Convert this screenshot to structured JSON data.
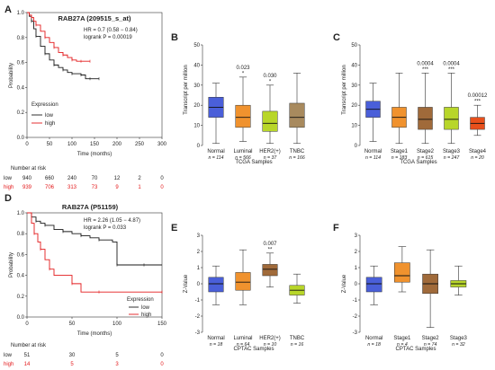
{
  "chart_data": [
    {
      "label": "A",
      "type": "line",
      "title": "RAB27A (209515_s_at)",
      "xlabel": "Time (months)",
      "ylabel": "Probability",
      "xticks": [
        0,
        50,
        100,
        150,
        200,
        250,
        300
      ],
      "yticks": [
        0.0,
        0.2,
        0.4,
        0.6,
        0.8,
        1.0
      ],
      "xlim": [
        0,
        300
      ],
      "ylim": [
        0,
        1
      ],
      "stats": [
        "HR = 0.7 (0.58 − 0.84)",
        "logrank P = 0.00019"
      ],
      "legend_title": "Expression",
      "legend_position": "bottom-left",
      "series": [
        {
          "name": "low",
          "color": "#1a1a1a",
          "x": [
            0,
            5,
            10,
            15,
            20,
            30,
            40,
            50,
            60,
            70,
            80,
            90,
            100,
            110,
            120,
            130,
            140,
            150,
            160
          ],
          "y": [
            1,
            0.97,
            0.93,
            0.87,
            0.81,
            0.73,
            0.67,
            0.62,
            0.58,
            0.56,
            0.54,
            0.52,
            0.51,
            0.51,
            0.5,
            0.47,
            0.47,
            0.47,
            0.47
          ]
        },
        {
          "name": "high",
          "color": "#e31a1c",
          "x": [
            0,
            5,
            10,
            15,
            20,
            30,
            40,
            50,
            60,
            70,
            80,
            90,
            100,
            110,
            120,
            130,
            140
          ],
          "y": [
            1,
            0.98,
            0.96,
            0.93,
            0.9,
            0.85,
            0.8,
            0.76,
            0.72,
            0.68,
            0.66,
            0.64,
            0.62,
            0.61,
            0.61,
            0.61,
            0.61
          ]
        }
      ],
      "risk_table": {
        "title": "Number at risk",
        "times": [
          0,
          50,
          100,
          150,
          200,
          250,
          300
        ],
        "rows": [
          {
            "name": "low",
            "values": [
              "940",
              "660",
              "240",
              "70",
              "12",
              "2",
              "0"
            ]
          },
          {
            "name": "high",
            "values": [
              "939",
              "706",
              "313",
              "73",
              "9",
              "1",
              "0"
            ]
          }
        ]
      }
    },
    {
      "label": "B",
      "type": "box",
      "xlabel": "TCGA Samples",
      "ylabel": "Transcript per million",
      "ylim": [
        0,
        50
      ],
      "yticks": [
        0,
        10,
        20,
        30,
        40,
        50
      ],
      "categories": [
        "Normal",
        "Luminal",
        "HER2(+)",
        "TNBC"
      ],
      "n": [
        "n = 114",
        "n = 566",
        "n = 37",
        "n = 166"
      ],
      "colors": [
        "#4a5fd9",
        "#f0922e",
        "#b8d62a",
        "#a88a5e"
      ],
      "boxes": [
        [
          1,
          14,
          19,
          24,
          31
        ],
        [
          2,
          9,
          14,
          20,
          34
        ],
        [
          1,
          7,
          11,
          17,
          30
        ],
        [
          1,
          9,
          14,
          21,
          36
        ]
      ],
      "annotations": [
        null,
        {
          "p": "0.023",
          "stars": "*"
        },
        {
          "p": "0.030",
          "stars": "*"
        },
        null
      ]
    },
    {
      "label": "C",
      "type": "box",
      "xlabel": "TCGA Samples",
      "ylabel": "Transcript per million",
      "ylim": [
        0,
        50
      ],
      "yticks": [
        0,
        10,
        20,
        30,
        40,
        50
      ],
      "categories": [
        "Normal",
        "Stage1",
        "Stage2",
        "Stage3",
        "Stage4"
      ],
      "n": [
        "n = 114",
        "n = 183",
        "n = 615",
        "n = 247",
        "n = 20"
      ],
      "colors": [
        "#4a5fd9",
        "#f0922e",
        "#a06a3a",
        "#b8d62a",
        "#e8501c"
      ],
      "boxes": [
        [
          2,
          14,
          18,
          22,
          31
        ],
        [
          1,
          9,
          14,
          19,
          36
        ],
        [
          1,
          8,
          13,
          19,
          36
        ],
        [
          1,
          8,
          13,
          19,
          36
        ],
        [
          5,
          8,
          11,
          14,
          20
        ]
      ],
      "annotations": [
        null,
        null,
        {
          "p": "0.0004",
          "stars": "***"
        },
        {
          "p": "0.0004",
          "stars": "***"
        },
        {
          "p": "0.00012",
          "stars": "***"
        }
      ]
    },
    {
      "label": "D",
      "type": "line",
      "title": "RAB27A (P51159)",
      "xlabel": "Time (months)",
      "ylabel": "Probability",
      "xticks": [
        0,
        50,
        100,
        150
      ],
      "yticks": [
        0.0,
        0.2,
        0.4,
        0.6,
        0.8,
        1.0
      ],
      "xlim": [
        0,
        150
      ],
      "ylim": [
        0,
        1
      ],
      "stats": [
        "HR = 2.26 (1.05 − 4.87)",
        "logrank P = 0.033"
      ],
      "legend_title": "Expression",
      "legend_position": "bottom-right",
      "series": [
        {
          "name": "low",
          "color": "#1a1a1a",
          "x": [
            0,
            5,
            10,
            15,
            20,
            30,
            40,
            50,
            60,
            70,
            80,
            95,
            100,
            110,
            130,
            150
          ],
          "y": [
            1,
            0.96,
            0.92,
            0.9,
            0.88,
            0.84,
            0.82,
            0.8,
            0.78,
            0.76,
            0.74,
            0.72,
            0.5,
            0.5,
            0.5,
            0.5
          ]
        },
        {
          "name": "high",
          "color": "#e31a1c",
          "x": [
            0,
            5,
            8,
            12,
            15,
            20,
            25,
            30,
            50,
            60,
            80,
            100,
            150
          ],
          "y": [
            1,
            0.9,
            0.8,
            0.72,
            0.65,
            0.55,
            0.46,
            0.4,
            0.32,
            0.24,
            0.24,
            0.24,
            0.24
          ]
        }
      ],
      "risk_table": {
        "title": "Number at risk",
        "times": [
          0,
          50,
          100,
          150
        ],
        "rows": [
          {
            "name": "low",
            "values": [
              "51",
              "30",
              "5",
              "0"
            ]
          },
          {
            "name": "high",
            "values": [
              "14",
              "5",
              "3",
              "0"
            ]
          }
        ]
      }
    },
    {
      "label": "E",
      "type": "box",
      "xlabel": "CPTAC Samples",
      "ylabel": "Z-Value",
      "ylim": [
        -3,
        3
      ],
      "yticks": [
        -3,
        -2,
        -1,
        0,
        1,
        2,
        3
      ],
      "categories": [
        "Normal",
        "Luminal",
        "HER2(+)",
        "TNBC"
      ],
      "n": [
        "n = 18",
        "n = 64",
        "n = 10",
        "n = 16"
      ],
      "colors": [
        "#4a5fd9",
        "#f0922e",
        "#a06a3a",
        "#b8d62a"
      ],
      "boxes": [
        [
          -1.3,
          -0.5,
          0.0,
          0.4,
          1.1
        ],
        [
          -1.3,
          -0.4,
          0.1,
          0.7,
          2.1
        ],
        [
          -0.2,
          0.5,
          0.9,
          1.2,
          1.9
        ],
        [
          -1.2,
          -0.7,
          -0.4,
          -0.1,
          0.6
        ]
      ],
      "annotations": [
        null,
        null,
        {
          "p": "0.007",
          "stars": "**"
        },
        null
      ]
    },
    {
      "label": "F",
      "type": "box",
      "xlabel": "CPTAC Samples",
      "ylabel": "Z-Value",
      "ylim": [
        -3,
        3
      ],
      "yticks": [
        -3,
        -2,
        -1,
        0,
        1,
        2,
        3
      ],
      "categories": [
        "Normal",
        "Stage1",
        "Stage2",
        "Stage3"
      ],
      "n": [
        "n = 18",
        "n = 4",
        "n = 74",
        "n = 32"
      ],
      "colors": [
        "#4a5fd9",
        "#f0922e",
        "#a06a3a",
        "#b8d62a"
      ],
      "boxes": [
        [
          -1.3,
          -0.5,
          0.0,
          0.4,
          1.1
        ],
        [
          -0.5,
          0.1,
          0.5,
          1.3,
          2.3
        ],
        [
          -2.7,
          -0.6,
          0.0,
          0.6,
          2.1
        ],
        [
          -0.7,
          -0.2,
          0.0,
          0.2,
          1.1
        ]
      ],
      "annotations": [
        null,
        null,
        null,
        null
      ]
    }
  ]
}
